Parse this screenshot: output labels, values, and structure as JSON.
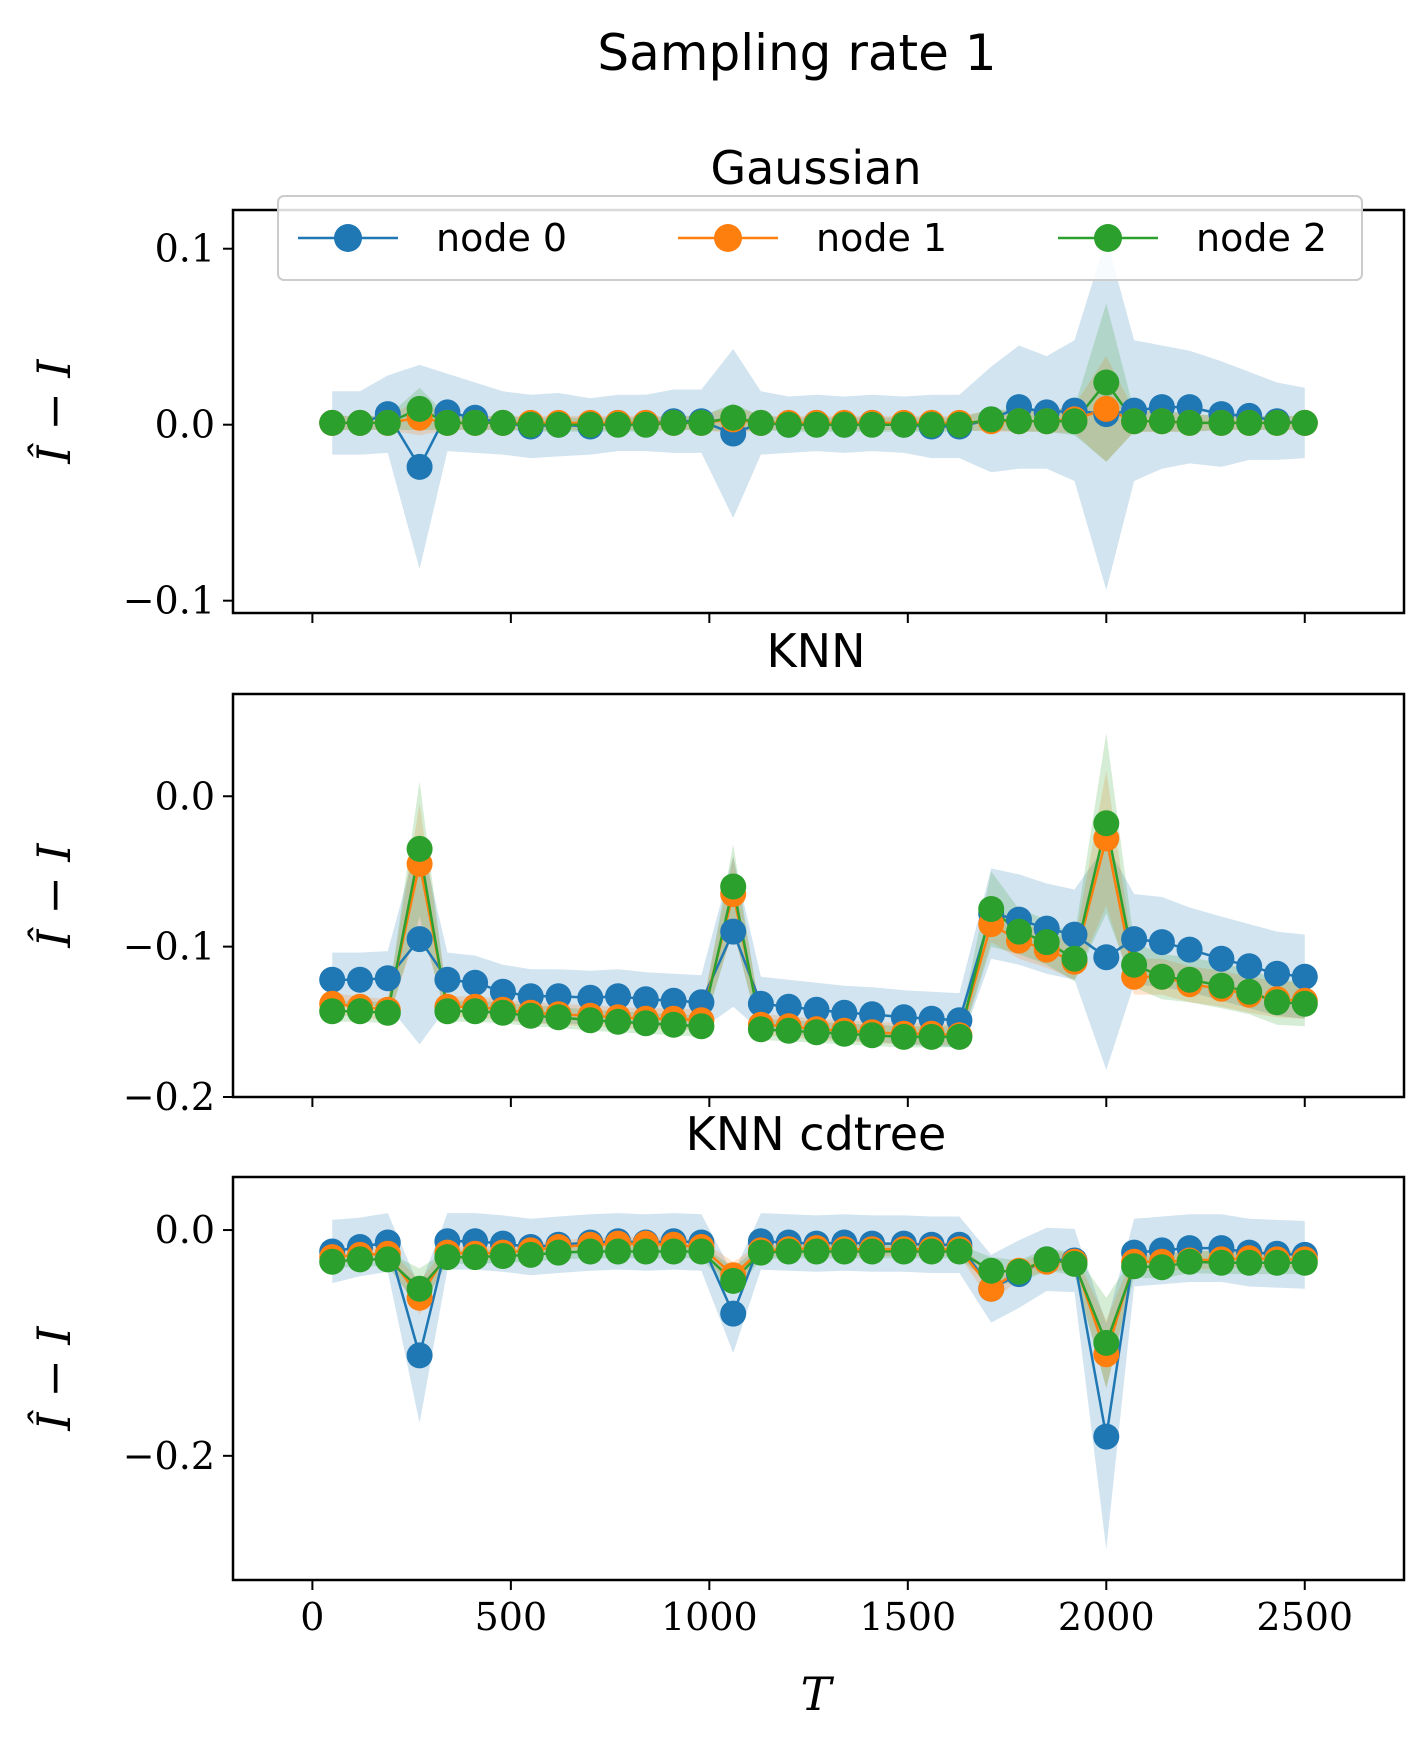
{
  "figure_title": "Sampling rate 1",
  "colors": {
    "node0": "#1f77b4",
    "node1": "#ff7f0e",
    "node2": "#2ca02c"
  },
  "legend": {
    "placement": "upper-center",
    "entries": [
      "node 0",
      "node 1",
      "node 2"
    ]
  },
  "chart_data": [
    {
      "type": "line",
      "title": "Gaussian",
      "xlabel": "",
      "ylabel": "Î − I",
      "xlim": [
        -200,
        2750
      ],
      "ylim": [
        -0.107,
        0.122
      ],
      "xticks": [
        0,
        500,
        1000,
        1500,
        2000,
        2500
      ],
      "xtick_labels_visible": false,
      "yticks": [
        -0.1,
        0.0,
        0.1
      ],
      "ytick_labels": [
        "−0.1",
        "0.0",
        "0.1"
      ],
      "x": [
        50,
        120,
        190,
        270,
        340,
        410,
        480,
        550,
        620,
        700,
        770,
        840,
        910,
        980,
        1060,
        1130,
        1200,
        1270,
        1340,
        1410,
        1490,
        1560,
        1630,
        1710,
        1780,
        1850,
        1920,
        2000,
        2070,
        2140,
        2210,
        2290,
        2360,
        2430,
        2500
      ],
      "series": [
        {
          "name": "node 0",
          "color": "#1f77b4",
          "values": [
            0.001,
            0.001,
            0.006,
            -0.024,
            0.007,
            0.004,
            0.001,
            -0.001,
            0.0,
            -0.001,
            0.001,
            0.001,
            0.002,
            0.002,
            -0.005,
            0.001,
            0.0,
            0.001,
            0.0,
            0.001,
            0.0,
            -0.001,
            -0.001,
            0.003,
            0.01,
            0.007,
            0.008,
            0.006,
            0.008,
            0.01,
            0.01,
            0.006,
            0.005,
            0.002,
            0.001
          ],
          "band": [
            0.018,
            0.018,
            0.022,
            0.058,
            0.022,
            0.02,
            0.018,
            0.018,
            0.018,
            0.016,
            0.016,
            0.016,
            0.018,
            0.018,
            0.048,
            0.018,
            0.016,
            0.016,
            0.016,
            0.016,
            0.016,
            0.018,
            0.018,
            0.03,
            0.035,
            0.032,
            0.04,
            0.1,
            0.04,
            0.035,
            0.032,
            0.03,
            0.025,
            0.022,
            0.02
          ]
        },
        {
          "name": "node 1",
          "color": "#ff7f0e",
          "values": [
            0.001,
            0.001,
            0.001,
            0.004,
            0.001,
            0.001,
            0.001,
            0.001,
            0.001,
            0.001,
            0.001,
            0.001,
            0.001,
            0.001,
            0.003,
            0.001,
            0.001,
            0.001,
            0.001,
            0.001,
            0.001,
            0.001,
            0.001,
            0.002,
            0.002,
            0.002,
            0.003,
            0.009,
            0.002,
            0.002,
            0.001,
            0.001,
            0.001,
            0.001,
            0.001
          ],
          "band": [
            0.004,
            0.004,
            0.004,
            0.01,
            0.004,
            0.004,
            0.004,
            0.004,
            0.004,
            0.004,
            0.004,
            0.004,
            0.004,
            0.004,
            0.008,
            0.004,
            0.004,
            0.004,
            0.004,
            0.004,
            0.004,
            0.004,
            0.004,
            0.006,
            0.006,
            0.006,
            0.008,
            0.03,
            0.006,
            0.006,
            0.005,
            0.004,
            0.004,
            0.004,
            0.004
          ]
        },
        {
          "name": "node 2",
          "color": "#2ca02c",
          "values": [
            0.001,
            0.001,
            0.001,
            0.009,
            0.001,
            0.001,
            0.001,
            0.0,
            0.0,
            0.0,
            0.0,
            0.0,
            0.001,
            0.001,
            0.004,
            0.001,
            0.0,
            0.0,
            0.0,
            0.0,
            0.0,
            0.0,
            0.0,
            0.003,
            0.002,
            0.002,
            0.002,
            0.024,
            0.002,
            0.002,
            0.001,
            0.001,
            0.001,
            0.001,
            0.001
          ],
          "band": [
            0.004,
            0.004,
            0.004,
            0.012,
            0.004,
            0.004,
            0.004,
            0.004,
            0.004,
            0.004,
            0.004,
            0.004,
            0.004,
            0.004,
            0.008,
            0.004,
            0.004,
            0.004,
            0.004,
            0.004,
            0.004,
            0.004,
            0.004,
            0.006,
            0.006,
            0.006,
            0.008,
            0.045,
            0.006,
            0.006,
            0.005,
            0.004,
            0.004,
            0.004,
            0.004
          ]
        }
      ]
    },
    {
      "type": "line",
      "title": "KNN",
      "xlabel": "",
      "ylabel": "Î − I",
      "xlim": [
        -200,
        2750
      ],
      "ylim": [
        -0.2,
        0.068
      ],
      "xticks": [
        0,
        500,
        1000,
        1500,
        2000,
        2500
      ],
      "xtick_labels_visible": false,
      "yticks": [
        -0.2,
        -0.1,
        0.0
      ],
      "ytick_labels": [
        "−0.2",
        "−0.1",
        "0.0"
      ],
      "x": [
        50,
        120,
        190,
        270,
        340,
        410,
        480,
        550,
        620,
        700,
        770,
        840,
        910,
        980,
        1060,
        1130,
        1200,
        1270,
        1340,
        1410,
        1490,
        1560,
        1630,
        1710,
        1780,
        1850,
        1920,
        2000,
        2070,
        2140,
        2210,
        2290,
        2360,
        2430,
        2500
      ],
      "series": [
        {
          "name": "node 0",
          "color": "#1f77b4",
          "values": [
            -0.122,
            -0.122,
            -0.121,
            -0.095,
            -0.122,
            -0.124,
            -0.13,
            -0.133,
            -0.133,
            -0.134,
            -0.133,
            -0.135,
            -0.136,
            -0.137,
            -0.09,
            -0.138,
            -0.14,
            -0.142,
            -0.144,
            -0.145,
            -0.147,
            -0.148,
            -0.149,
            -0.078,
            -0.082,
            -0.088,
            -0.092,
            -0.107,
            -0.095,
            -0.097,
            -0.102,
            -0.108,
            -0.113,
            -0.118,
            -0.12
          ],
          "band": [
            0.018,
            0.018,
            0.018,
            0.07,
            0.018,
            0.018,
            0.018,
            0.018,
            0.018,
            0.018,
            0.018,
            0.018,
            0.018,
            0.018,
            0.05,
            0.018,
            0.018,
            0.018,
            0.018,
            0.018,
            0.018,
            0.018,
            0.018,
            0.03,
            0.03,
            0.03,
            0.03,
            0.075,
            0.03,
            0.03,
            0.028,
            0.028,
            0.028,
            0.028,
            0.028
          ]
        },
        {
          "name": "node 1",
          "color": "#ff7f0e",
          "values": [
            -0.138,
            -0.14,
            -0.142,
            -0.045,
            -0.14,
            -0.14,
            -0.142,
            -0.144,
            -0.145,
            -0.146,
            -0.147,
            -0.148,
            -0.148,
            -0.149,
            -0.065,
            -0.152,
            -0.153,
            -0.155,
            -0.156,
            -0.157,
            -0.158,
            -0.158,
            -0.159,
            -0.085,
            -0.096,
            -0.102,
            -0.11,
            -0.028,
            -0.12,
            -0.12,
            -0.125,
            -0.128,
            -0.132,
            -0.135,
            -0.136
          ],
          "band": [
            0.007,
            0.007,
            0.007,
            0.04,
            0.007,
            0.007,
            0.007,
            0.007,
            0.007,
            0.007,
            0.007,
            0.007,
            0.007,
            0.007,
            0.025,
            0.007,
            0.007,
            0.007,
            0.007,
            0.007,
            0.007,
            0.007,
            0.007,
            0.012,
            0.012,
            0.012,
            0.012,
            0.045,
            0.012,
            0.012,
            0.012,
            0.012,
            0.012,
            0.012,
            0.012
          ]
        },
        {
          "name": "node 2",
          "color": "#2ca02c",
          "values": [
            -0.143,
            -0.143,
            -0.144,
            -0.035,
            -0.143,
            -0.143,
            -0.144,
            -0.146,
            -0.147,
            -0.149,
            -0.15,
            -0.151,
            -0.152,
            -0.153,
            -0.06,
            -0.155,
            -0.156,
            -0.157,
            -0.158,
            -0.159,
            -0.16,
            -0.16,
            -0.16,
            -0.075,
            -0.09,
            -0.097,
            -0.108,
            -0.018,
            -0.112,
            -0.12,
            -0.122,
            -0.126,
            -0.13,
            -0.137,
            -0.138
          ],
          "band": [
            0.007,
            0.007,
            0.007,
            0.045,
            0.007,
            0.007,
            0.007,
            0.007,
            0.007,
            0.007,
            0.007,
            0.007,
            0.007,
            0.007,
            0.028,
            0.007,
            0.007,
            0.007,
            0.007,
            0.007,
            0.007,
            0.007,
            0.007,
            0.025,
            0.015,
            0.015,
            0.015,
            0.06,
            0.015,
            0.015,
            0.015,
            0.015,
            0.015,
            0.015,
            0.015
          ]
        }
      ]
    },
    {
      "type": "line",
      "title": "KNN cdtree",
      "xlabel": "T",
      "ylabel": "Î − I",
      "xlim": [
        -200,
        2750
      ],
      "ylim": [
        -0.31,
        0.047
      ],
      "xticks": [
        0,
        500,
        1000,
        1500,
        2000,
        2500
      ],
      "xtick_labels_visible": true,
      "xtick_labels": [
        "0",
        "500",
        "1000",
        "1500",
        "2000",
        "2500"
      ],
      "yticks": [
        -0.2,
        0.0
      ],
      "ytick_labels": [
        "−0.2",
        "0.0"
      ],
      "x": [
        50,
        120,
        190,
        270,
        340,
        410,
        480,
        550,
        620,
        700,
        770,
        840,
        910,
        980,
        1060,
        1130,
        1200,
        1270,
        1340,
        1410,
        1490,
        1560,
        1630,
        1710,
        1780,
        1850,
        1920,
        2000,
        2070,
        2140,
        2210,
        2290,
        2360,
        2430,
        2500
      ],
      "series": [
        {
          "name": "node 0",
          "color": "#1f77b4",
          "values": [
            -0.019,
            -0.015,
            -0.011,
            -0.111,
            -0.01,
            -0.01,
            -0.012,
            -0.015,
            -0.013,
            -0.011,
            -0.01,
            -0.011,
            -0.01,
            -0.011,
            -0.074,
            -0.01,
            -0.011,
            -0.012,
            -0.011,
            -0.012,
            -0.012,
            -0.013,
            -0.013,
            -0.052,
            -0.039,
            -0.026,
            -0.027,
            -0.183,
            -0.02,
            -0.018,
            -0.016,
            -0.016,
            -0.02,
            -0.021,
            -0.022
          ],
          "band": [
            0.028,
            0.026,
            0.026,
            0.06,
            0.025,
            0.025,
            0.025,
            0.025,
            0.025,
            0.025,
            0.025,
            0.025,
            0.025,
            0.025,
            0.035,
            0.025,
            0.025,
            0.025,
            0.025,
            0.025,
            0.025,
            0.025,
            0.025,
            0.03,
            0.03,
            0.028,
            0.028,
            0.1,
            0.03,
            0.03,
            0.03,
            0.03,
            0.03,
            0.03,
            0.03
          ]
        },
        {
          "name": "node 1",
          "color": "#ff7f0e",
          "values": [
            -0.024,
            -0.022,
            -0.021,
            -0.06,
            -0.02,
            -0.021,
            -0.02,
            -0.018,
            -0.015,
            -0.013,
            -0.012,
            -0.012,
            -0.013,
            -0.015,
            -0.04,
            -0.018,
            -0.017,
            -0.016,
            -0.017,
            -0.017,
            -0.017,
            -0.017,
            -0.017,
            -0.052,
            -0.036,
            -0.028,
            -0.028,
            -0.11,
            -0.028,
            -0.028,
            -0.027,
            -0.026,
            -0.025,
            -0.026,
            -0.026
          ],
          "band": [
            0.006,
            0.006,
            0.006,
            0.015,
            0.006,
            0.006,
            0.006,
            0.006,
            0.006,
            0.006,
            0.006,
            0.006,
            0.006,
            0.006,
            0.012,
            0.006,
            0.006,
            0.006,
            0.006,
            0.006,
            0.006,
            0.006,
            0.006,
            0.012,
            0.008,
            0.008,
            0.008,
            0.03,
            0.008,
            0.008,
            0.008,
            0.008,
            0.008,
            0.008,
            0.008
          ]
        },
        {
          "name": "node 2",
          "color": "#2ca02c",
          "values": [
            -0.028,
            -0.026,
            -0.026,
            -0.052,
            -0.024,
            -0.024,
            -0.023,
            -0.022,
            -0.02,
            -0.019,
            -0.019,
            -0.019,
            -0.019,
            -0.019,
            -0.045,
            -0.02,
            -0.019,
            -0.019,
            -0.019,
            -0.019,
            -0.019,
            -0.019,
            -0.019,
            -0.036,
            -0.037,
            -0.026,
            -0.03,
            -0.1,
            -0.032,
            -0.033,
            -0.028,
            -0.029,
            -0.029,
            -0.029,
            -0.029
          ],
          "band": [
            0.006,
            0.006,
            0.006,
            0.018,
            0.006,
            0.006,
            0.006,
            0.006,
            0.006,
            0.006,
            0.006,
            0.006,
            0.006,
            0.006,
            0.012,
            0.006,
            0.006,
            0.006,
            0.006,
            0.006,
            0.006,
            0.006,
            0.006,
            0.012,
            0.01,
            0.01,
            0.01,
            0.04,
            0.01,
            0.01,
            0.01,
            0.01,
            0.01,
            0.01,
            0.01
          ]
        }
      ]
    }
  ]
}
